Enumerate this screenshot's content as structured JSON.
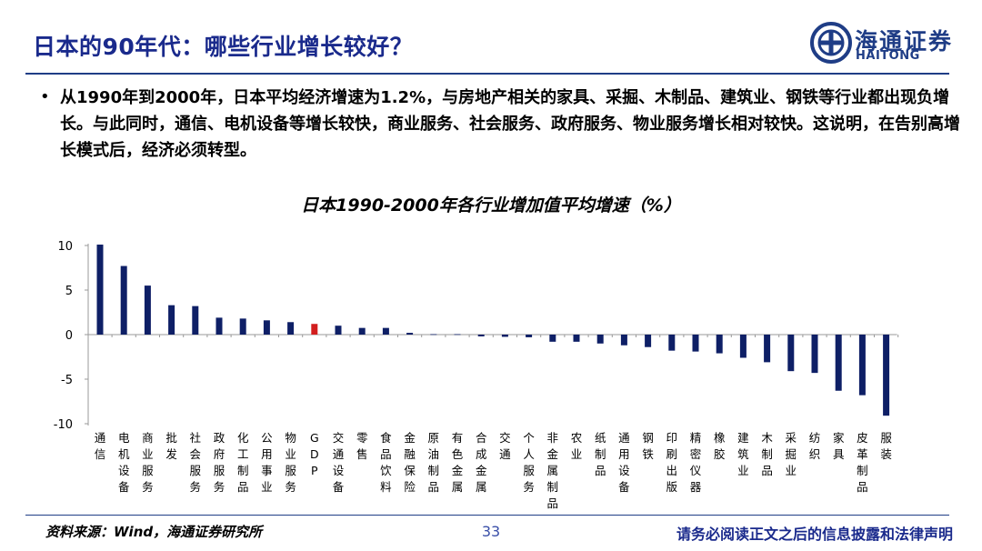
{
  "header": {
    "title": "日本的90年代：哪些行业增长较好？",
    "logo_cn": "海通证券",
    "logo_en": "HAITONG"
  },
  "bullet_symbol": "•",
  "body_text": "从1990年到2000年，日本平均经济增速为1.2%，与房地产相关的家具、采掘、木制品、建筑业、钢铁等行业都出现负增长。与此同时，通信、电机设备等增长较快，商业服务、社会服务、政府服务、物业服务增长相对较快。这说明，在告别高增长模式后，经济必须转型。",
  "chart_data": {
    "type": "bar",
    "title": "日本1990-2000年各行业增加值平均增速（%）",
    "categories": [
      "通信",
      "电机设备",
      "商业服务",
      "批发",
      "社会服务",
      "政府服务",
      "化工制品",
      "公用事业",
      "物业服务",
      "GDP",
      "交通设备",
      "零售",
      "食品饮料",
      "金融保险",
      "原油制品",
      "有色金属",
      "合成金属",
      "交通",
      "个人服务",
      "非金属制品",
      "农业",
      "纸制品",
      "通用设备",
      "钢铁",
      "印刷出版",
      "精密仪器",
      "橡胶",
      "建筑业",
      "木制品",
      "采掘业",
      "纺织",
      "家具",
      "皮革制品",
      "服装"
    ],
    "values": [
      10.1,
      7.7,
      5.5,
      3.3,
      3.2,
      1.9,
      1.8,
      1.6,
      1.4,
      1.2,
      1.0,
      0.75,
      0.75,
      0.2,
      0.05,
      0.05,
      -0.2,
      -0.25,
      -0.3,
      -0.8,
      -0.8,
      -1.0,
      -1.2,
      -1.4,
      -1.8,
      -1.9,
      -2.1,
      -2.6,
      -3.1,
      -4.1,
      -4.3,
      -6.3,
      -6.8,
      -9.1
    ],
    "highlight_category": "GDP",
    "ylim": [
      -10,
      10
    ],
    "yticks": [
      10,
      5,
      0,
      -5,
      -10
    ],
    "xlabel": "",
    "ylabel": "",
    "grid": false,
    "colors": {
      "bar": "#0e1f66",
      "highlight": "#d21e1e"
    }
  },
  "footer": {
    "source": "资料来源：Wind，海通证券研究所",
    "page": "33",
    "disclaimer": "请务必阅读正文之后的信息披露和法律声明"
  }
}
